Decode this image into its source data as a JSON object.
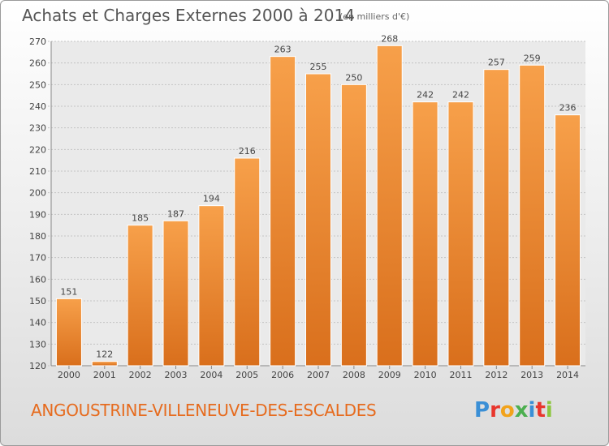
{
  "title": "Achats et Charges Externes 2000 à 2014",
  "subtitle": "(en milliers d'€)",
  "city": "ANGOUSTRINE-VILLENEUVE-DES-ESCALDES",
  "logo": {
    "letters": [
      "P",
      "r",
      "o",
      "x",
      "i",
      "t",
      "i"
    ],
    "colors": [
      "#3a8fd6",
      "#e8362d",
      "#f2a31b",
      "#4caf50",
      "#3a8fd6",
      "#e8362d",
      "#8dc63f"
    ]
  },
  "colors": {
    "bar": "#f08a2a",
    "bar_light": "#f7aa5a",
    "bar_dark": "#d4691a",
    "grid": "#bbbbbb",
    "text": "#444444",
    "accent": "#e66b1e"
  },
  "chart_data": {
    "type": "bar",
    "title": "Achats et Charges Externes 2000 à 2014",
    "categories": [
      "2000",
      "2001",
      "2002",
      "2003",
      "2004",
      "2005",
      "2006",
      "2007",
      "2008",
      "2009",
      "2010",
      "2011",
      "2012",
      "2013",
      "2014"
    ],
    "values": [
      151,
      122,
      185,
      187,
      194,
      216,
      263,
      255,
      250,
      268,
      242,
      242,
      257,
      259,
      236
    ],
    "ylim": [
      120,
      270
    ],
    "yticks": [
      120,
      130,
      140,
      150,
      160,
      170,
      180,
      190,
      200,
      210,
      220,
      230,
      240,
      250,
      260,
      270
    ],
    "grid": true,
    "data_labels": true
  }
}
